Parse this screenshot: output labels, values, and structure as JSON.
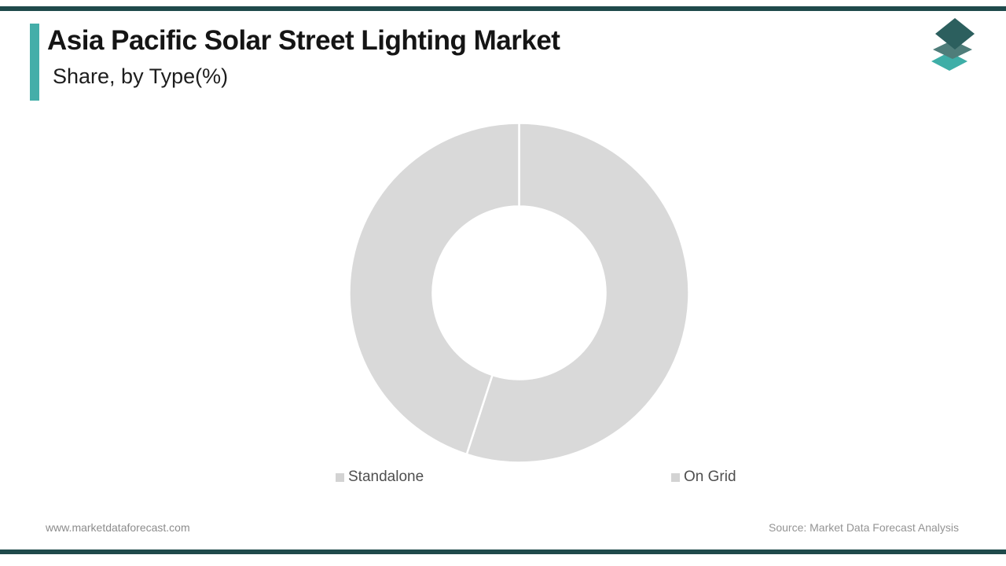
{
  "header": {
    "title": "Asia Pacific Solar Street Lighting Market",
    "subtitle": "Share, by Type(%)"
  },
  "branding": {
    "accent_color": "#44aea9",
    "edge_bar_color": "#1f4a4b",
    "logo_layer_colors": {
      "top": "#2c5f5e",
      "middle": "#4f7d7a",
      "bottom": "#3eaea7"
    }
  },
  "chart_data": {
    "type": "pie",
    "subtype": "donut",
    "title": "Asia Pacific Solar Street Lighting Market Share, by Type(%)",
    "categories": [
      "Standalone",
      "On Grid"
    ],
    "values": [
      55,
      45
    ],
    "unit": "%",
    "slice_color": "#d9d9d9",
    "slice_border_color": "#ffffff",
    "start_angle_deg": 0,
    "inner_radius_ratio": 0.51,
    "legend_position": "bottom",
    "data_labels": "none"
  },
  "legend": {
    "items": [
      {
        "label": "Standalone",
        "marker_color": "#d3d3d3"
      },
      {
        "label": "On Grid",
        "marker_color": "#d3d3d3"
      }
    ]
  },
  "footer": {
    "website": "www.marketdataforecast.com",
    "source": "Source: Market Data Forecast Analysis"
  }
}
